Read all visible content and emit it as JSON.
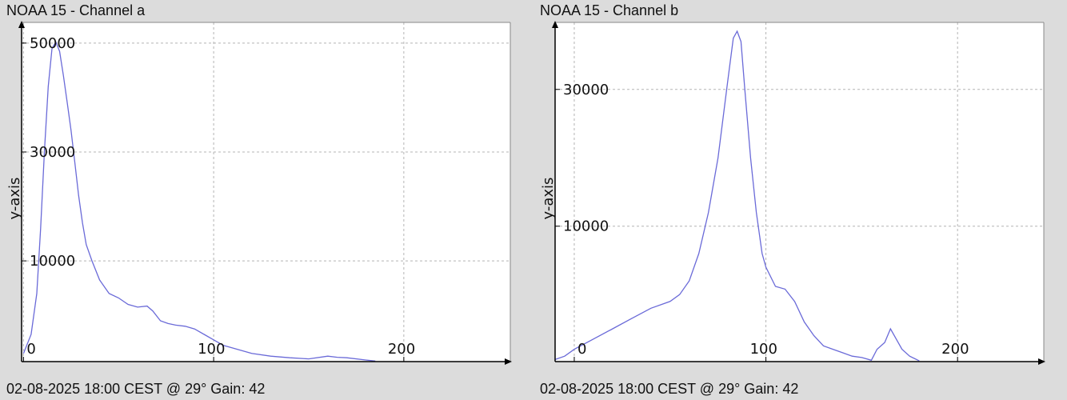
{
  "chart_data": [
    {
      "type": "line",
      "title": "NOAA 15 - Channel a",
      "footer": "02-08-2025 18:00 CEST @ 29° Gain: 42",
      "ylabel": "y-axis",
      "xlabel": "",
      "xlim": [
        -1,
        256
      ],
      "ylim": [
        -8500,
        53800
      ],
      "x_ticks": [
        0,
        100,
        200
      ],
      "y_ticks": [
        10000,
        30000,
        50000
      ],
      "grid": true,
      "line_color": "#6a6ad8",
      "series": [
        {
          "x": [
            0,
            4,
            7,
            9,
            11,
            13,
            15,
            17,
            19,
            21,
            23,
            25,
            27,
            29,
            31,
            33,
            36,
            40,
            45,
            50,
            55,
            60,
            65,
            68,
            72,
            76,
            80,
            85,
            90,
            95,
            100,
            105,
            110,
            120,
            130,
            140,
            150,
            160,
            165,
            170,
            180,
            185
          ],
          "y": [
            -7000,
            -3500,
            4000,
            16000,
            30000,
            42000,
            49000,
            50200,
            48500,
            44000,
            39000,
            34000,
            28000,
            22000,
            17000,
            13000,
            10000,
            6500,
            4000,
            3200,
            2000,
            1500,
            1700,
            800,
            -1000,
            -1500,
            -1800,
            -2000,
            -2500,
            -3500,
            -4500,
            -5500,
            -6000,
            -7000,
            -7500,
            -7800,
            -8000,
            -7500,
            -7700,
            -7800,
            -8200,
            -8400
          ]
        }
      ]
    },
    {
      "type": "line",
      "title": "NOAA 15 - Channel b",
      "footer": "02-08-2025 18:00 CEST @ 29° Gain: 42",
      "ylabel": "y-axis",
      "xlabel": "",
      "xlim": [
        -10,
        245
      ],
      "ylim": [
        -9800,
        39800
      ],
      "x_ticks": [
        0,
        100,
        200
      ],
      "y_ticks": [
        10000,
        30000
      ],
      "grid": true,
      "line_color": "#6a6ad8",
      "series": [
        {
          "x": [
            -10,
            -5,
            0,
            10,
            20,
            30,
            40,
            50,
            55,
            60,
            65,
            70,
            75,
            80,
            83,
            85,
            87,
            89,
            92,
            95,
            98,
            100,
            105,
            110,
            115,
            120,
            125,
            130,
            135,
            140,
            145,
            150,
            155,
            158,
            162,
            165,
            168,
            171,
            175,
            180
          ],
          "y": [
            -9500,
            -9000,
            -8000,
            -6500,
            -5000,
            -3500,
            -2000,
            -1000,
            0,
            2000,
            6000,
            12000,
            20000,
            31000,
            37500,
            38500,
            37000,
            30000,
            20000,
            12000,
            6000,
            4000,
            1200,
            800,
            -1000,
            -4000,
            -6000,
            -7500,
            -8000,
            -8500,
            -9000,
            -9200,
            -9600,
            -8000,
            -7000,
            -5000,
            -6500,
            -8000,
            -9000,
            -9700
          ]
        }
      ]
    }
  ]
}
